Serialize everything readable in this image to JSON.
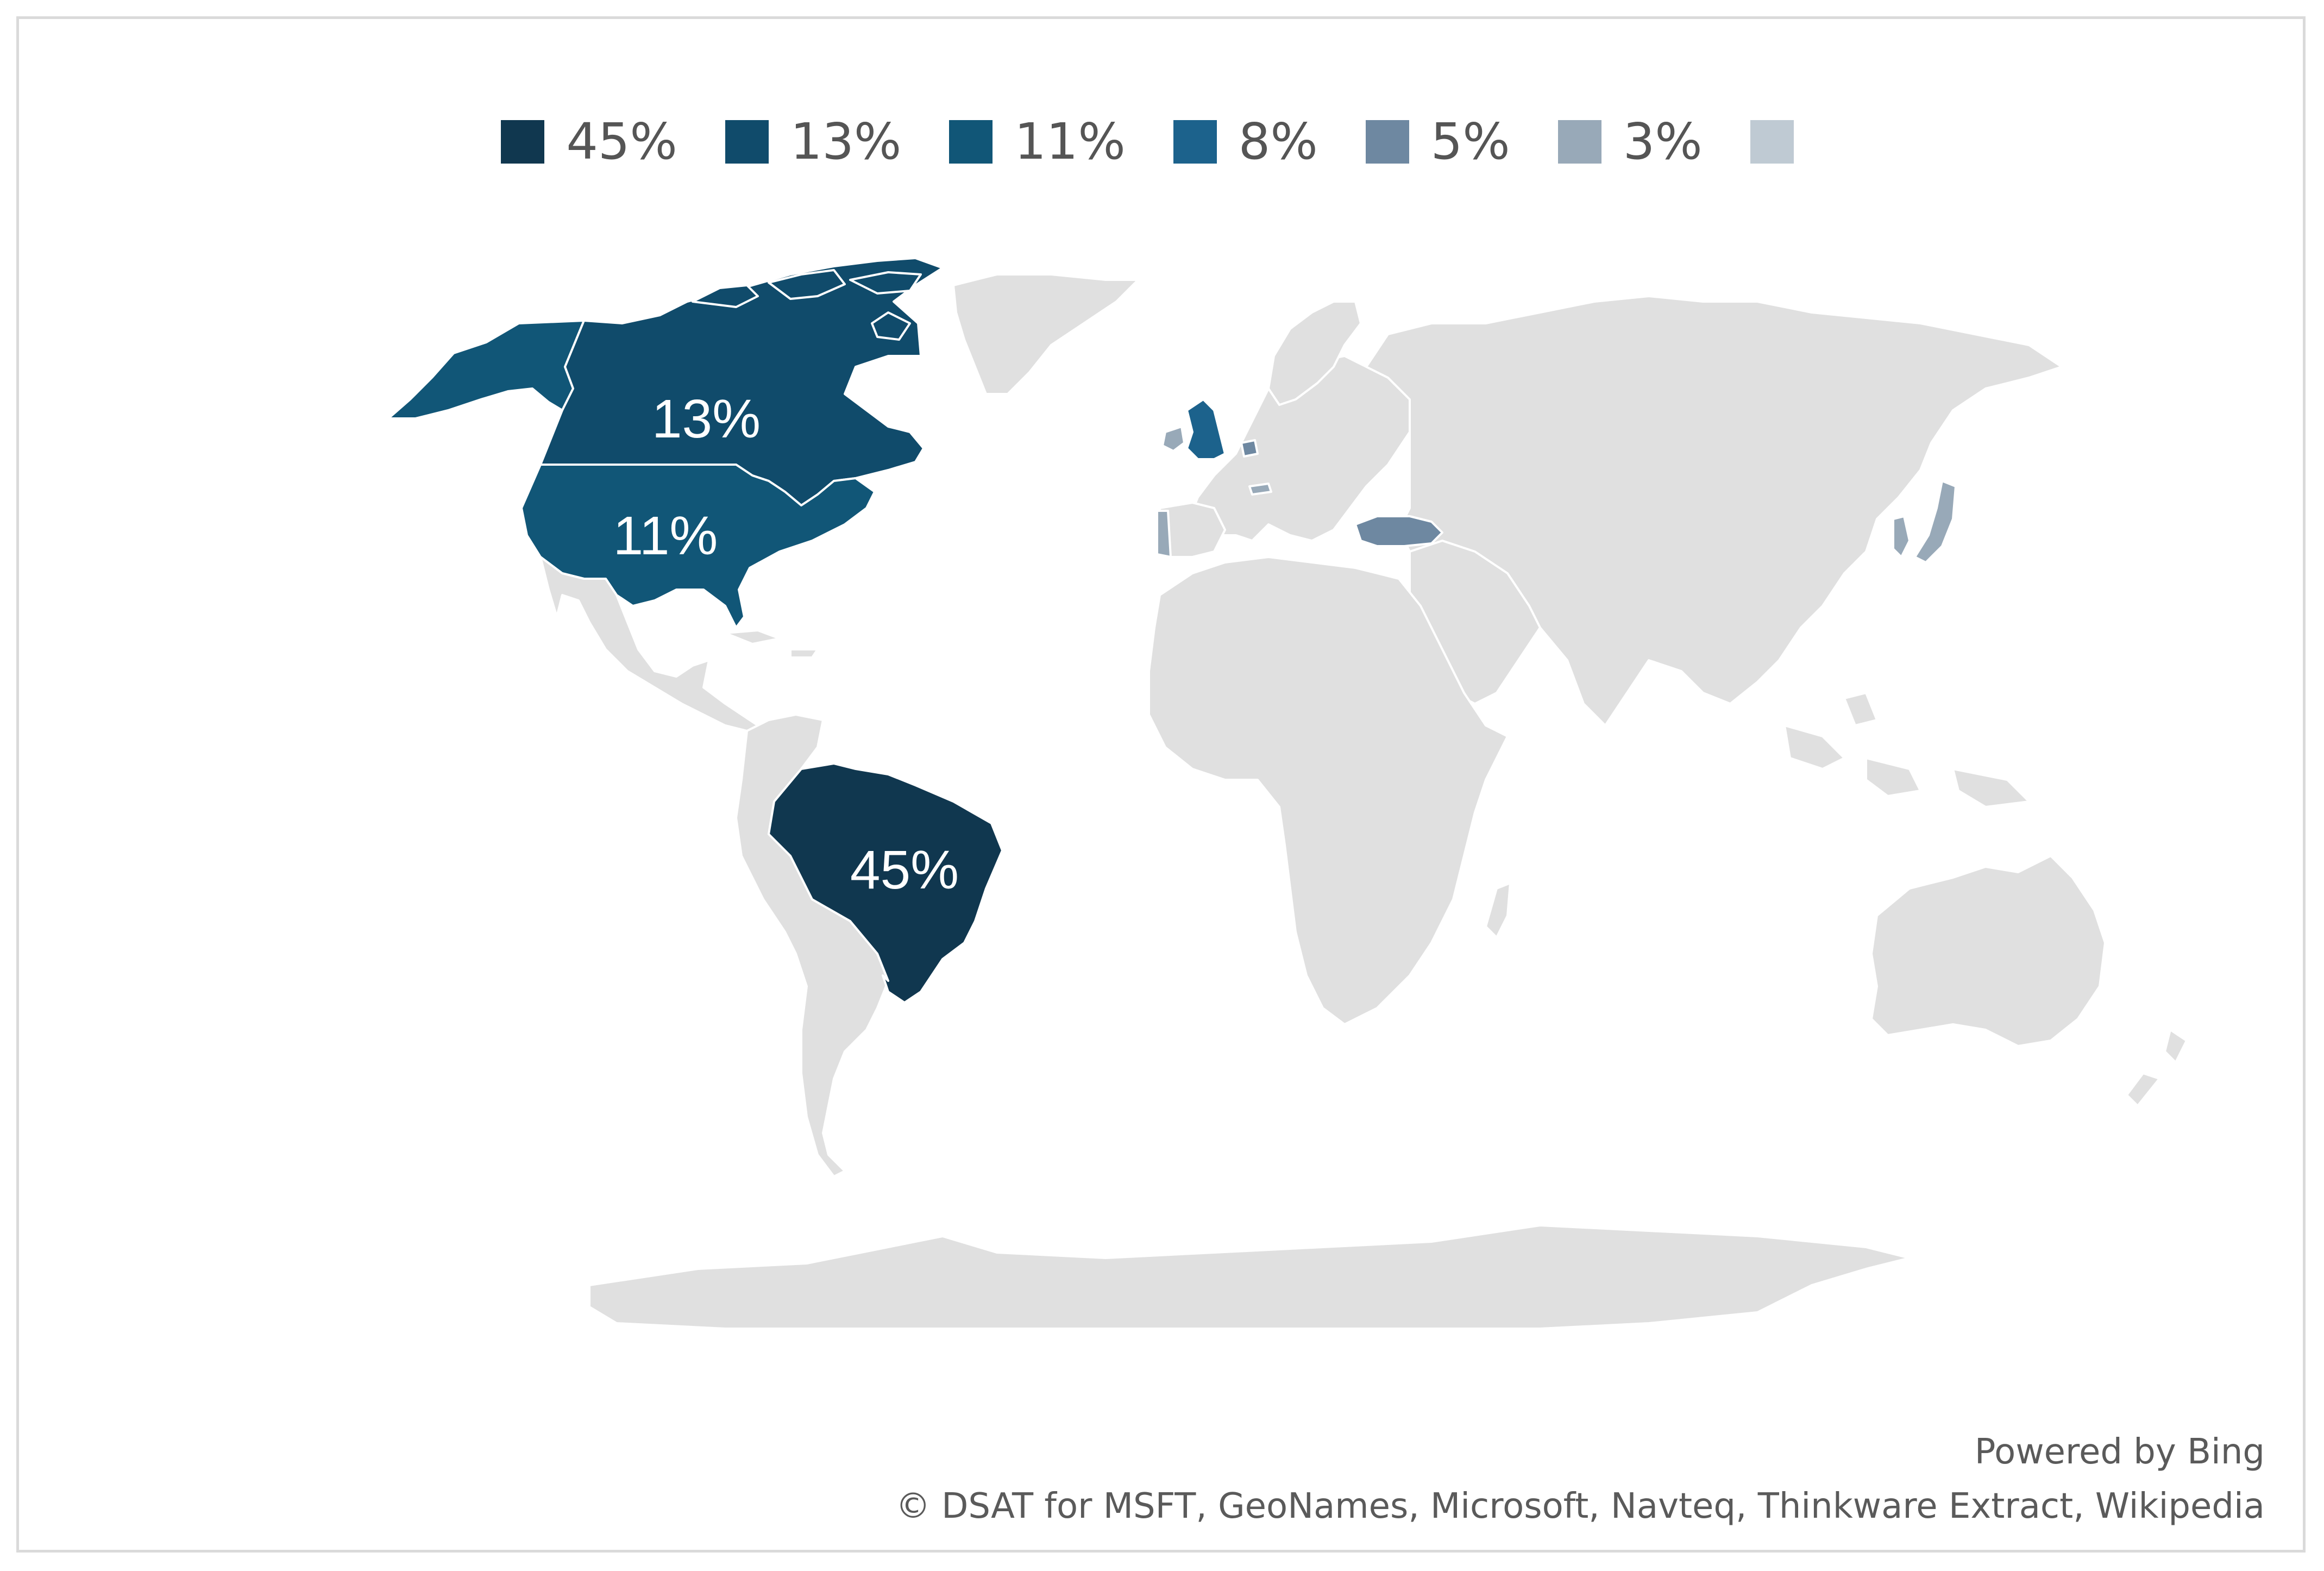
{
  "legend": [
    {
      "label": "45%",
      "color": "#10374f"
    },
    {
      "label": "13%",
      "color": "#104b6b"
    },
    {
      "label": "11%",
      "color": "#115677"
    },
    {
      "label": "8%",
      "color": "#1c628c"
    },
    {
      "label": "5%",
      "color": "#6e88a1"
    },
    {
      "label": "3%",
      "color": "#98a9b8"
    },
    {
      "label": "",
      "color": "#bfcad3"
    }
  ],
  "colors": {
    "land": "#e0e0e0",
    "border": "#ffffff"
  },
  "regions": {
    "brazil": {
      "value_label": "45%",
      "color": "#10374f"
    },
    "canada": {
      "value_label": "13%",
      "color": "#104b6b"
    },
    "usa": {
      "value_label": "11%",
      "color": "#115677"
    },
    "uk": {
      "color": "#1c628c"
    },
    "turkey": {
      "color": "#6e88a1"
    },
    "japan": {
      "color": "#98a9b8"
    },
    "portugal": {
      "color": "#98a9b8"
    },
    "ireland": {
      "color": "#98a9b8"
    },
    "korea": {
      "color": "#98a9b8"
    },
    "netherlands": {
      "color": "#6e88a1"
    },
    "switzerland": {
      "color": "#98a9b8"
    }
  },
  "attribution": {
    "powered_by": "Powered by Bing",
    "copyright": "© DSAT for MSFT, GeoNames, Microsoft, Navteq, Thinkware Extract, Wikipedia"
  }
}
